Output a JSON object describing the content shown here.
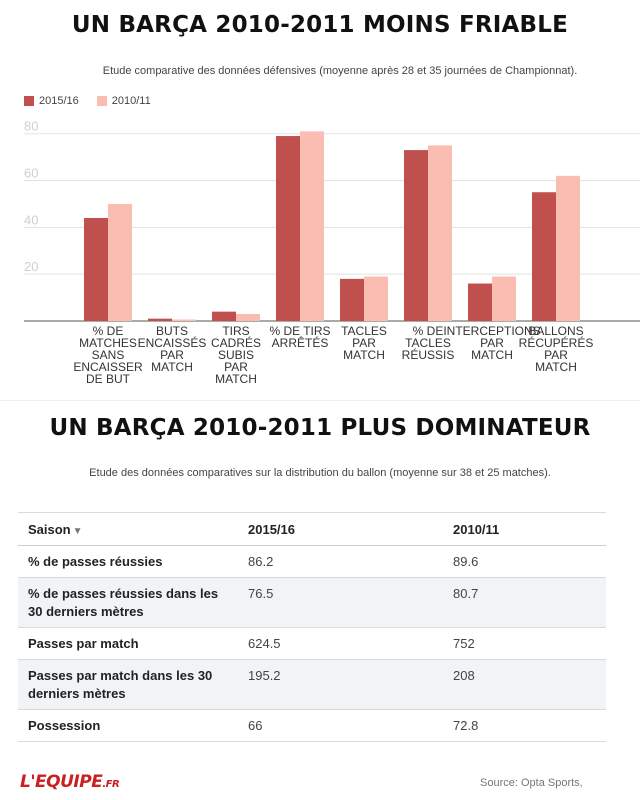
{
  "chart_data": {
    "type": "bar",
    "title": "UN BARÇA 2010-2011 MOINS FRIABLE",
    "subtitle": "Etude comparative des données défensives (moyenne après 28 et 35 journées de Championnat).",
    "categories": [
      "% DE MATCHES SANS ENCAISSER DE BUT",
      "BUTS ENCAISSÉS PAR MATCH",
      "TIRS CADRÉS SUBIS PAR MATCH",
      "% DE TIRS ARRÊTÉS",
      "TACLES PAR MATCH",
      "% DE TACLES RÉUSSIS",
      "INTERCEPTIONS PAR MATCH",
      "BALLONS RÉCUPÉRÉS PAR MATCH"
    ],
    "category_lines": [
      [
        "% DE",
        "MATCHES",
        "SANS",
        "ENCAISSER",
        "DE BUT"
      ],
      [
        "BUTS",
        "ENCAISSÉS",
        "PAR",
        "MATCH"
      ],
      [
        "TIRS",
        "CADRÉS",
        "SUBIS",
        "PAR",
        "MATCH"
      ],
      [
        "% DE TIRS",
        "ARRÊTÉS"
      ],
      [
        "TACLES",
        "PAR",
        "MATCH"
      ],
      [
        "% DE",
        "TACLES",
        "RÉUSSIS"
      ],
      [
        "INTERCEPTIONS",
        "PAR",
        "MATCH"
      ],
      [
        "BALLONS",
        "RÉCUPÉRÉS",
        "PAR",
        "MATCH"
      ]
    ],
    "series": [
      {
        "name": "2015/16",
        "color": "#c0504d",
        "values": [
          44,
          1,
          4,
          79,
          18,
          73,
          16,
          55
        ]
      },
      {
        "name": "2010/11",
        "color": "#fbbcb1",
        "values": [
          50,
          0.5,
          3,
          81,
          19,
          75,
          19,
          62
        ]
      }
    ],
    "yticks": [
      20,
      40,
      60,
      80
    ],
    "ylim": [
      0,
      85
    ],
    "grid": true,
    "legend": "top-left"
  },
  "table": {
    "title": "UN BARÇA 2010-2011 PLUS DOMINATEUR",
    "subtitle": "Etude des données comparatives sur la distribution du ballon (moyenne sur 38 et 25 matches).",
    "headers": [
      "Saison",
      "2015/16",
      "2010/11"
    ],
    "sort_arrow": "▼",
    "rows": [
      {
        "label": "% de passes réussies",
        "values": [
          "86.2",
          "89.6"
        ]
      },
      {
        "label": "% de passes réussies dans les 30 derniers mètres",
        "values": [
          "76.5",
          "80.7"
        ]
      },
      {
        "label": "Passes par match",
        "values": [
          "624.5",
          "752"
        ]
      },
      {
        "label": "Passes par match dans les 30 derniers mètres",
        "values": [
          "195.2",
          "208"
        ]
      },
      {
        "label": "Possession",
        "values": [
          "66",
          "72.8"
        ]
      }
    ]
  },
  "footer": {
    "logo_main": "L'EQUIPE",
    "logo_suffix": ".FR",
    "source": "Source: Opta Sports,"
  }
}
